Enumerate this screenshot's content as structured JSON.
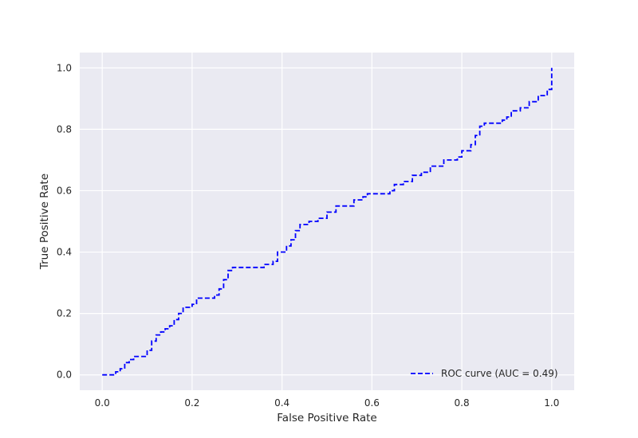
{
  "chart_data": {
    "type": "line",
    "title": "",
    "xlabel": "False Positive Rate",
    "ylabel": "True Positive Rate",
    "xlim": [
      -0.05,
      1.05
    ],
    "ylim": [
      -0.05,
      1.05
    ],
    "xticks": [
      "0.0",
      "0.2",
      "0.4",
      "0.6",
      "0.8",
      "1.0"
    ],
    "yticks": [
      "0.0",
      "0.2",
      "0.4",
      "0.6",
      "0.8",
      "1.0"
    ],
    "grid": true,
    "legend_position": "lower-right",
    "series": [
      {
        "name": "ROC curve (AUC = 0.49)",
        "color": "#0000ff",
        "line_style": "dashed",
        "points": [
          [
            0.0,
            0.0
          ],
          [
            0.02,
            0.0
          ],
          [
            0.03,
            0.01
          ],
          [
            0.04,
            0.02
          ],
          [
            0.05,
            0.04
          ],
          [
            0.06,
            0.05
          ],
          [
            0.07,
            0.06
          ],
          [
            0.09,
            0.06
          ],
          [
            0.1,
            0.08
          ],
          [
            0.11,
            0.11
          ],
          [
            0.12,
            0.13
          ],
          [
            0.13,
            0.14
          ],
          [
            0.14,
            0.15
          ],
          [
            0.15,
            0.16
          ],
          [
            0.16,
            0.18
          ],
          [
            0.17,
            0.2
          ],
          [
            0.18,
            0.22
          ],
          [
            0.2,
            0.23
          ],
          [
            0.21,
            0.25
          ],
          [
            0.25,
            0.26
          ],
          [
            0.26,
            0.28
          ],
          [
            0.27,
            0.31
          ],
          [
            0.28,
            0.34
          ],
          [
            0.29,
            0.35
          ],
          [
            0.34,
            0.35
          ],
          [
            0.36,
            0.36
          ],
          [
            0.38,
            0.37
          ],
          [
            0.39,
            0.4
          ],
          [
            0.41,
            0.42
          ],
          [
            0.42,
            0.44
          ],
          [
            0.43,
            0.47
          ],
          [
            0.44,
            0.49
          ],
          [
            0.46,
            0.5
          ],
          [
            0.48,
            0.51
          ],
          [
            0.5,
            0.53
          ],
          [
            0.52,
            0.55
          ],
          [
            0.55,
            0.55
          ],
          [
            0.56,
            0.57
          ],
          [
            0.58,
            0.58
          ],
          [
            0.59,
            0.59
          ],
          [
            0.64,
            0.6
          ],
          [
            0.65,
            0.62
          ],
          [
            0.67,
            0.63
          ],
          [
            0.69,
            0.65
          ],
          [
            0.71,
            0.66
          ],
          [
            0.73,
            0.68
          ],
          [
            0.76,
            0.7
          ],
          [
            0.79,
            0.71
          ],
          [
            0.8,
            0.73
          ],
          [
            0.82,
            0.75
          ],
          [
            0.83,
            0.78
          ],
          [
            0.84,
            0.81
          ],
          [
            0.85,
            0.82
          ],
          [
            0.89,
            0.83
          ],
          [
            0.9,
            0.84
          ],
          [
            0.91,
            0.86
          ],
          [
            0.93,
            0.87
          ],
          [
            0.95,
            0.89
          ],
          [
            0.97,
            0.91
          ],
          [
            0.99,
            0.93
          ],
          [
            1.0,
            0.97
          ],
          [
            1.0,
            1.0
          ]
        ]
      }
    ]
  }
}
